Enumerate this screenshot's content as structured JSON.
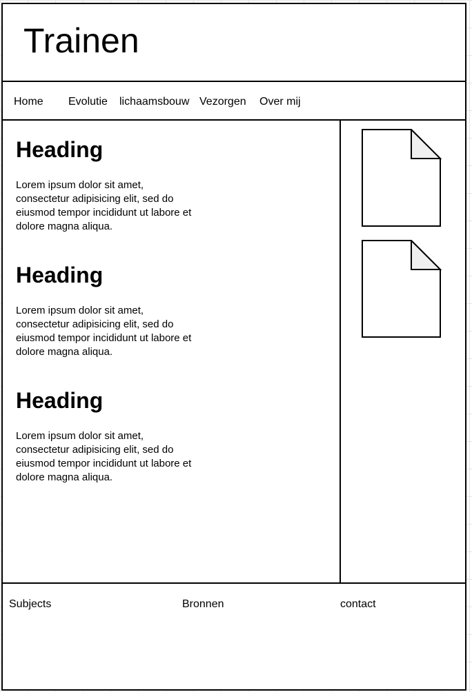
{
  "header": {
    "title": "Trainen"
  },
  "nav": {
    "items": [
      {
        "label": "Home"
      },
      {
        "label": "Evolutie"
      },
      {
        "label": "lichaamsbouw"
      },
      {
        "label": "Vezorgen"
      },
      {
        "label": "Over mij"
      }
    ]
  },
  "main": {
    "articles": [
      {
        "heading": "Heading",
        "body": "Lorem ipsum dolor sit amet, consectetur adipisicing elit, sed do eiusmod tempor incididunt ut labore et dolore magna aliqua."
      },
      {
        "heading": "Heading",
        "body": "Lorem ipsum dolor sit amet, consectetur adipisicing elit, sed do eiusmod tempor incididunt ut labore et dolore magna aliqua."
      },
      {
        "heading": "Heading",
        "body": "Lorem ipsum dolor sit amet, consectetur adipisicing elit, sed do eiusmod tempor incididunt ut labore et dolore magna aliqua."
      }
    ]
  },
  "sidebar": {
    "images": [
      {
        "icon": "document-icon"
      },
      {
        "icon": "document-icon"
      }
    ]
  },
  "footer": {
    "items": [
      {
        "label": "Subjects"
      },
      {
        "label": "Bronnen"
      },
      {
        "label": "contact"
      }
    ]
  },
  "colors": {
    "border": "#000000",
    "page": "#ffffff",
    "grid": "#e4e4e4",
    "fold": "#efefef"
  }
}
